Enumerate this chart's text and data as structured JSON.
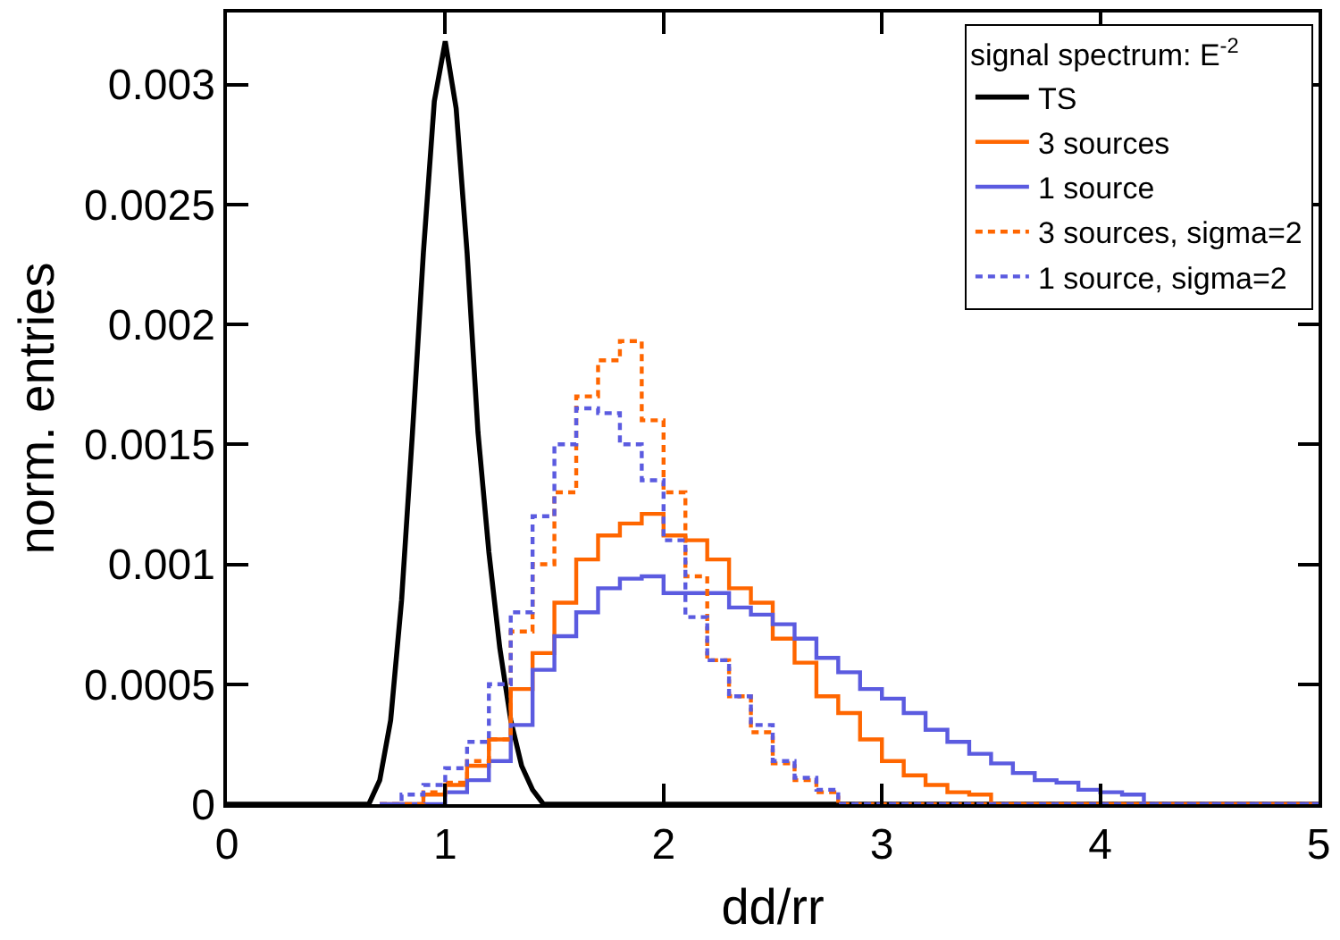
{
  "chart_data": {
    "type": "step",
    "xlabel": "dd/rr",
    "ylabel": "norm. entries",
    "legend_title": "signal spectrum: E$^{-2}$",
    "legend": "top right",
    "marker": "none",
    "xlim": [
      0,
      5
    ],
    "xticks": [
      0,
      1,
      2,
      3,
      4,
      5
    ],
    "ylim": [
      0,
      0.0033
    ],
    "yticks": [
      0,
      0.0005,
      0.001,
      0.0015,
      0.002,
      0.0025,
      0.003
    ],
    "x": [
      0.7,
      0.8,
      0.9,
      1.0,
      1.1,
      1.2,
      1.3,
      1.4,
      1.5,
      1.6,
      1.7,
      1.8,
      1.9,
      2.0,
      2.1,
      2.2,
      2.3,
      2.4,
      2.5,
      2.6,
      2.7,
      2.8,
      2.9,
      3.0,
      3.1,
      3.2,
      3.3,
      3.4,
      3.5,
      3.6,
      3.7,
      3.8,
      3.9,
      4.0,
      4.1,
      4.2,
      4.3,
      4.4,
      4.5,
      4.6,
      4.7,
      4.8,
      4.9,
      5.0
    ],
    "series": [
      {
        "name": "TS",
        "type": "line",
        "color": "#000000",
        "line_style": "solid",
        "x": [
          0,
          0.6,
          0.65,
          0.7,
          0.75,
          0.8,
          0.85,
          0.9,
          0.95,
          1.0,
          1.05,
          1.1,
          1.15,
          1.2,
          1.25,
          1.3,
          1.35,
          1.4,
          1.45,
          1.5,
          5
        ],
        "values": [
          0,
          0,
          0,
          0.0001,
          0.00035,
          0.00085,
          0.00155,
          0.0023,
          0.00293,
          0.00318,
          0.0029,
          0.0023,
          0.00155,
          0.00105,
          0.00065,
          0.00035,
          0.00016,
          6e-05,
          0,
          0,
          0
        ]
      },
      {
        "name": "3 sources",
        "color": "#ff6600",
        "line_style": "solid",
        "values": [
          0,
          0,
          4e-05,
          8e-05,
          0.00016,
          0.00027,
          0.00048,
          0.00063,
          0.00084,
          0.00102,
          0.00112,
          0.00117,
          0.00121,
          0.00112,
          0.0011,
          0.00102,
          0.0009,
          0.00084,
          0.00069,
          0.00059,
          0.00045,
          0.00038,
          0.00027,
          0.00018,
          0.00012,
          8e-05,
          5e-05,
          4e-05,
          0,
          0,
          0,
          0,
          0,
          0,
          0,
          0,
          0,
          0,
          0,
          0,
          0,
          0,
          0,
          0
        ]
      },
      {
        "name": "1 source",
        "color": "#5b5be0",
        "line_style": "solid",
        "values": [
          0,
          0,
          0,
          5e-05,
          0.0001,
          0.00018,
          0.00033,
          0.00056,
          0.0007,
          0.0008,
          0.0009,
          0.00094,
          0.00095,
          0.00088,
          0.00088,
          0.00088,
          0.00082,
          0.00079,
          0.00075,
          0.00069,
          0.00061,
          0.00055,
          0.00048,
          0.00044,
          0.00038,
          0.00031,
          0.00026,
          0.00021,
          0.00017,
          0.00013,
          0.0001,
          9e-05,
          6e-05,
          5e-05,
          4e-05,
          0,
          0,
          0,
          0,
          0,
          0,
          0,
          0,
          0
        ]
      },
      {
        "name": "3 sources, sigma=2",
        "color": "#ff6600",
        "line_style": "dashed",
        "values": [
          0,
          0,
          5e-05,
          9e-05,
          0.00018,
          0.00027,
          0.00072,
          0.001,
          0.0013,
          0.0017,
          0.00185,
          0.00193,
          0.0016,
          0.0013,
          0.00095,
          0.0006,
          0.00045,
          0.0003,
          0.00017,
          0.0001,
          5e-05,
          0,
          0,
          0,
          0,
          0,
          0,
          0,
          0,
          0,
          0,
          0,
          0,
          0,
          0,
          0,
          0,
          0,
          0,
          0,
          0,
          0,
          0,
          0
        ]
      },
      {
        "name": "1 source, sigma=2",
        "color": "#5b5be0",
        "line_style": "dashed",
        "values": [
          0,
          4e-05,
          8e-05,
          0.00015,
          0.00026,
          0.0005,
          0.0008,
          0.0012,
          0.0015,
          0.00165,
          0.00163,
          0.0015,
          0.00135,
          0.0011,
          0.00078,
          0.0006,
          0.00045,
          0.00033,
          0.00018,
          0.00011,
          6e-05,
          0,
          0,
          0,
          0,
          0,
          0,
          0,
          0,
          0,
          0,
          0,
          0,
          0,
          0,
          0,
          0,
          0,
          0,
          0,
          0,
          0,
          0,
          0
        ]
      }
    ]
  }
}
